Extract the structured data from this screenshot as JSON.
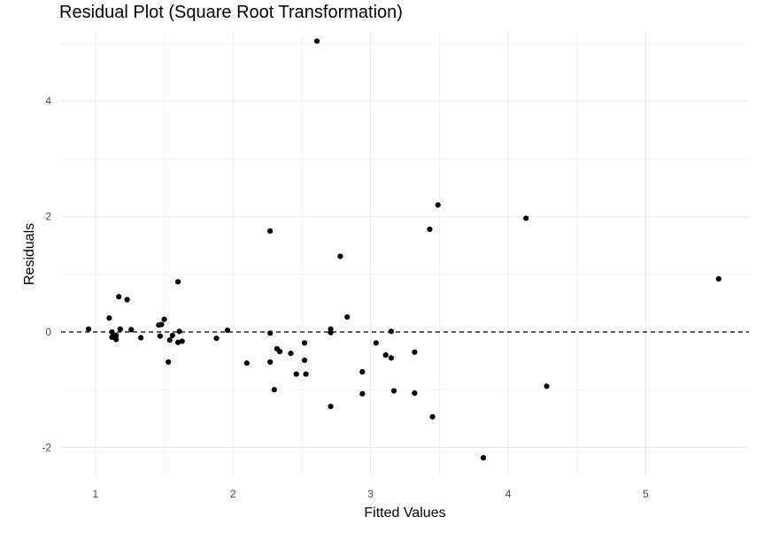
{
  "chart_data": {
    "type": "scatter",
    "title": "Residual Plot (Square Root Transformation)",
    "xlabel": "Fitted Values",
    "ylabel": "Residuals",
    "xlim": [
      0.75,
      5.75
    ],
    "ylim": [
      -2.5,
      5.2
    ],
    "x_ticks": [
      1,
      2,
      3,
      4,
      5
    ],
    "x_tick_labels": [
      "1",
      "2",
      "3",
      "4",
      "5"
    ],
    "y_ticks": [
      -2,
      0,
      2,
      4
    ],
    "y_tick_labels": [
      "-2",
      "0",
      "2",
      "4"
    ],
    "grid": true,
    "reference_line": {
      "y": 0,
      "style": "dashed"
    },
    "points": [
      {
        "x": 0.95,
        "y": 0.05
      },
      {
        "x": 1.1,
        "y": 0.24
      },
      {
        "x": 1.12,
        "y": 0.0
      },
      {
        "x": 1.12,
        "y": -0.09
      },
      {
        "x": 1.15,
        "y": -0.13
      },
      {
        "x": 1.15,
        "y": -0.06
      },
      {
        "x": 1.17,
        "y": 0.61
      },
      {
        "x": 1.18,
        "y": 0.05
      },
      {
        "x": 1.23,
        "y": 0.56
      },
      {
        "x": 1.26,
        "y": 0.04
      },
      {
        "x": 1.33,
        "y": -0.1
      },
      {
        "x": 1.46,
        "y": 0.12
      },
      {
        "x": 1.47,
        "y": -0.07
      },
      {
        "x": 1.48,
        "y": 0.13
      },
      {
        "x": 1.5,
        "y": 0.22
      },
      {
        "x": 1.53,
        "y": -0.52
      },
      {
        "x": 1.54,
        "y": -0.14
      },
      {
        "x": 1.56,
        "y": -0.06
      },
      {
        "x": 1.6,
        "y": -0.18
      },
      {
        "x": 1.6,
        "y": 0.87
      },
      {
        "x": 1.61,
        "y": 0.01
      },
      {
        "x": 1.63,
        "y": -0.16
      },
      {
        "x": 1.88,
        "y": -0.11
      },
      {
        "x": 1.96,
        "y": 0.03
      },
      {
        "x": 2.1,
        "y": -0.54
      },
      {
        "x": 2.27,
        "y": 1.75
      },
      {
        "x": 2.27,
        "y": -0.02
      },
      {
        "x": 2.27,
        "y": -0.52
      },
      {
        "x": 2.3,
        "y": -1.0
      },
      {
        "x": 2.32,
        "y": -0.29
      },
      {
        "x": 2.34,
        "y": -0.34
      },
      {
        "x": 2.42,
        "y": -0.37
      },
      {
        "x": 2.46,
        "y": -0.73
      },
      {
        "x": 2.52,
        "y": -0.19
      },
      {
        "x": 2.52,
        "y": -0.49
      },
      {
        "x": 2.53,
        "y": -0.73
      },
      {
        "x": 2.61,
        "y": 5.04
      },
      {
        "x": 2.71,
        "y": 0.05
      },
      {
        "x": 2.71,
        "y": -0.01
      },
      {
        "x": 2.71,
        "y": -1.29
      },
      {
        "x": 2.78,
        "y": 1.31
      },
      {
        "x": 2.83,
        "y": 0.26
      },
      {
        "x": 2.94,
        "y": -0.69
      },
      {
        "x": 2.94,
        "y": -1.07
      },
      {
        "x": 3.04,
        "y": -0.19
      },
      {
        "x": 3.11,
        "y": -0.4
      },
      {
        "x": 3.15,
        "y": 0.01
      },
      {
        "x": 3.15,
        "y": -0.45
      },
      {
        "x": 3.17,
        "y": -1.02
      },
      {
        "x": 3.32,
        "y": -0.35
      },
      {
        "x": 3.32,
        "y": -1.06
      },
      {
        "x": 3.43,
        "y": 1.78
      },
      {
        "x": 3.45,
        "y": -1.47
      },
      {
        "x": 3.49,
        "y": 2.2
      },
      {
        "x": 3.82,
        "y": -2.18
      },
      {
        "x": 4.13,
        "y": 1.97
      },
      {
        "x": 4.28,
        "y": -0.94
      },
      {
        "x": 5.53,
        "y": 0.92
      }
    ]
  }
}
